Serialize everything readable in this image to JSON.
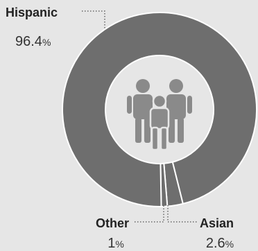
{
  "chart_data": {
    "type": "pie",
    "donut": true,
    "categories": [
      "Hispanic",
      "Asian",
      "Other"
    ],
    "values": [
      96.4,
      2.6,
      1
    ],
    "value_labels": [
      "96.4",
      "2.6",
      "1"
    ],
    "unit": "%",
    "center_icon": "family-icon",
    "colors": {
      "background": "#e6e6e6",
      "slice": "#6e6e6e",
      "separator": "#ffffff",
      "icon": "#8a8a8a"
    }
  }
}
